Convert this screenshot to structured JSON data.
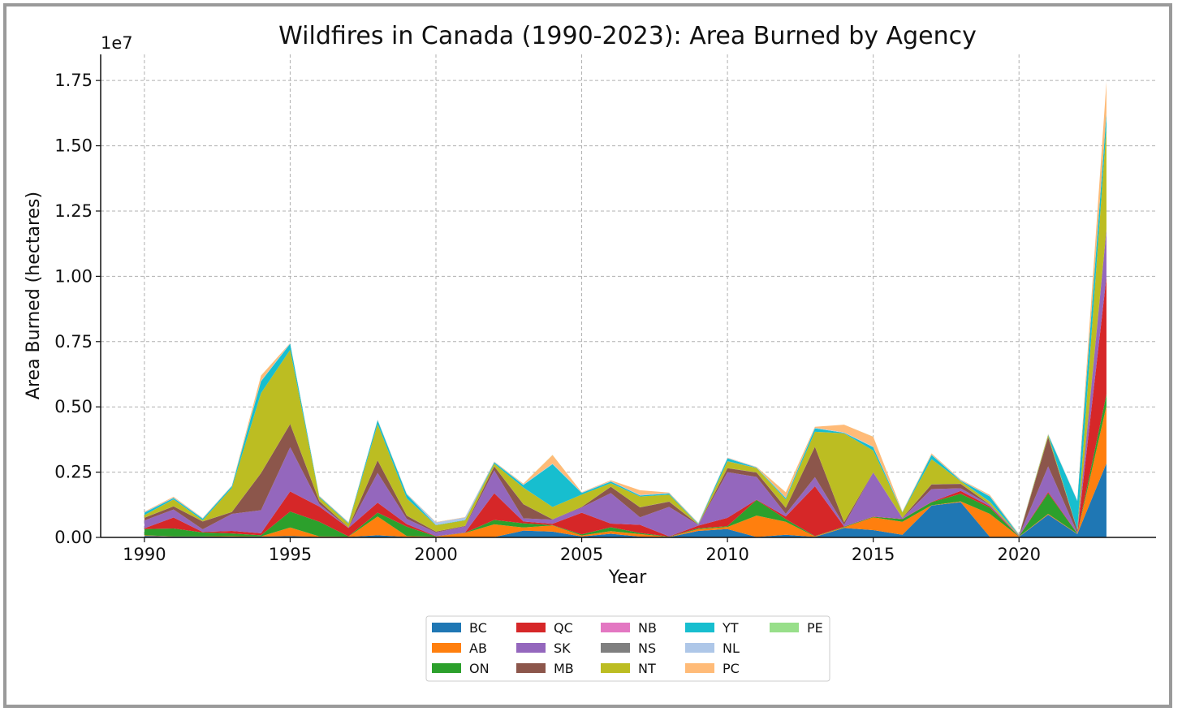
{
  "chart_data": {
    "type": "area",
    "stacked": true,
    "title": "Wildfires in Canada (1990-2023): Area Burned by Agency",
    "xlabel": "Year",
    "ylabel": "Area Burned (hectares)",
    "y_scale_label": "1e7",
    "xlim": [
      1988.5,
      2024.7
    ],
    "ylim": [
      0,
      18500000
    ],
    "x_ticks": [
      1990,
      1995,
      2000,
      2005,
      2010,
      2015,
      2020
    ],
    "x_tick_labels": [
      "1990",
      "1995",
      "2000",
      "2005",
      "2010",
      "2015",
      "2020"
    ],
    "y_ticks": [
      0,
      2500000,
      5000000,
      7500000,
      10000000,
      12500000,
      15000000,
      17500000
    ],
    "y_tick_labels": [
      "0.00",
      "0.25",
      "0.50",
      "0.75",
      "1.00",
      "1.25",
      "1.50",
      "1.75"
    ],
    "grid": true,
    "legend_position": "bottom-center",
    "x": [
      1990,
      1991,
      1992,
      1993,
      1994,
      1995,
      1996,
      1997,
      1998,
      1999,
      2000,
      2001,
      2002,
      2003,
      2004,
      2005,
      2006,
      2007,
      2008,
      2009,
      2010,
      2011,
      2012,
      2013,
      2014,
      2015,
      2016,
      2017,
      2018,
      2019,
      2020,
      2021,
      2022,
      2023
    ],
    "series": [
      {
        "name": "BC",
        "color": "#1f77b4",
        "values": [
          60000,
          30000,
          30000,
          30000,
          30000,
          50000,
          20000,
          20000,
          80000,
          20000,
          20000,
          10000,
          10000,
          260000,
          220000,
          35000,
          140000,
          30000,
          10000,
          250000,
          320000,
          15000,
          100000,
          20000,
          360000,
          280000,
          100000,
          1220000,
          1350000,
          20000,
          20000,
          870000,
          130000,
          2840000
        ]
      },
      {
        "name": "AB",
        "color": "#ff7f0e",
        "values": [
          20000,
          10000,
          10000,
          20000,
          10000,
          330000,
          20000,
          10000,
          720000,
          30000,
          10000,
          160000,
          490000,
          120000,
          240000,
          40000,
          100000,
          100000,
          10000,
          70000,
          80000,
          820000,
          500000,
          20000,
          30000,
          490000,
          500000,
          10000,
          30000,
          880000,
          10000,
          30000,
          10000,
          2200000
        ]
      },
      {
        "name": "ON",
        "color": "#2ca02c",
        "values": [
          240000,
          300000,
          150000,
          100000,
          40000,
          610000,
          560000,
          10000,
          150000,
          360000,
          10000,
          10000,
          170000,
          160000,
          10000,
          40000,
          150000,
          40000,
          10000,
          30000,
          30000,
          600000,
          100000,
          10000,
          20000,
          20000,
          100000,
          120000,
          290000,
          240000,
          10000,
          790000,
          10000,
          440000
        ]
      },
      {
        "name": "QC",
        "color": "#d62728",
        "values": [
          30000,
          420000,
          20000,
          100000,
          80000,
          770000,
          580000,
          320000,
          380000,
          100000,
          10000,
          10000,
          1020000,
          70000,
          50000,
          830000,
          140000,
          310000,
          10000,
          100000,
          320000,
          10000,
          100000,
          1910000,
          10000,
          10000,
          10000,
          10000,
          110000,
          50000,
          10000,
          50000,
          10000,
          4500000
        ]
      },
      {
        "name": "SK",
        "color": "#9467bd",
        "values": [
          300000,
          310000,
          100000,
          650000,
          880000,
          1700000,
          100000,
          10000,
          1140000,
          200000,
          140000,
          230000,
          880000,
          120000,
          160000,
          200000,
          1170000,
          290000,
          1130000,
          30000,
          1750000,
          870000,
          100000,
          350000,
          60000,
          1680000,
          30000,
          490000,
          100000,
          60000,
          10000,
          980000,
          20000,
          1800000
        ]
      },
      {
        "name": "MB",
        "color": "#8c564b",
        "values": [
          100000,
          120000,
          300000,
          70000,
          1420000,
          880000,
          110000,
          10000,
          480000,
          120000,
          30000,
          20000,
          150000,
          540000,
          10000,
          20000,
          240000,
          380000,
          200000,
          10000,
          150000,
          170000,
          230000,
          1160000,
          100000,
          10000,
          10000,
          180000,
          170000,
          10000,
          10000,
          1120000,
          100000,
          20000
        ]
      },
      {
        "name": "NS",
        "color": "#7f7f7f",
        "values": [
          5000,
          5000,
          5000,
          5000,
          5000,
          5000,
          5000,
          5000,
          5000,
          5000,
          5000,
          5000,
          5000,
          5000,
          5000,
          5000,
          5000,
          5000,
          5000,
          5000,
          5000,
          5000,
          5000,
          5000,
          5000,
          5000,
          5000,
          5000,
          5000,
          5000,
          5000,
          5000,
          5000,
          5000
        ]
      },
      {
        "name": "NT",
        "color": "#bcbd22",
        "values": [
          100000,
          260000,
          40000,
          920000,
          3060000,
          2840000,
          140000,
          140000,
          1380000,
          660000,
          240000,
          210000,
          100000,
          630000,
          470000,
          470000,
          130000,
          410000,
          260000,
          10000,
          260000,
          170000,
          320000,
          570000,
          3400000,
          830000,
          200000,
          960000,
          100000,
          100000,
          10000,
          80000,
          10000,
          3900000
        ]
      },
      {
        "name": "NB",
        "color": "#e377c2",
        "values": [
          2000,
          2000,
          2000,
          2000,
          2000,
          2000,
          2000,
          2000,
          2000,
          2000,
          2000,
          2000,
          2000,
          2000,
          2000,
          2000,
          2000,
          2000,
          2000,
          2000,
          2000,
          2000,
          2000,
          2000,
          2000,
          2000,
          2000,
          2000,
          2000,
          2000,
          2000,
          2000,
          2000,
          2000
        ]
      },
      {
        "name": "YT",
        "color": "#17becf",
        "values": [
          90000,
          50000,
          60000,
          60000,
          450000,
          230000,
          30000,
          30000,
          150000,
          150000,
          10000,
          10000,
          50000,
          100000,
          1640000,
          60000,
          60000,
          40000,
          40000,
          20000,
          110000,
          10000,
          50000,
          130000,
          20000,
          130000,
          10000,
          160000,
          20000,
          200000,
          10000,
          10000,
          1100000,
          530000
        ]
      },
      {
        "name": "NL",
        "color": "#aec7e8",
        "values": [
          20000,
          20000,
          20000,
          20000,
          20000,
          20000,
          20000,
          20000,
          20000,
          20000,
          100000,
          100000,
          20000,
          20000,
          20000,
          20000,
          20000,
          20000,
          20000,
          20000,
          20000,
          20000,
          20000,
          20000,
          20000,
          20000,
          20000,
          20000,
          20000,
          20000,
          20000,
          20000,
          20000,
          20000
        ]
      },
      {
        "name": "PC",
        "color": "#ffbb78",
        "values": [
          20000,
          30000,
          10000,
          10000,
          200000,
          10000,
          10000,
          10000,
          10000,
          10000,
          10000,
          10000,
          10000,
          30000,
          330000,
          10000,
          30000,
          180000,
          20000,
          10000,
          10000,
          10000,
          200000,
          40000,
          290000,
          380000,
          10000,
          40000,
          20000,
          40000,
          10000,
          10000,
          10000,
          1200000
        ]
      },
      {
        "name": "PE",
        "color": "#98df8a",
        "values": [
          1000,
          1000,
          1000,
          1000,
          1000,
          1000,
          1000,
          1000,
          1000,
          1000,
          1000,
          1000,
          1000,
          1000,
          1000,
          1000,
          1000,
          1000,
          1000,
          1000,
          1000,
          1000,
          1000,
          1000,
          1000,
          1000,
          1000,
          1000,
          1000,
          1000,
          1000,
          1000,
          1000,
          1000
        ]
      }
    ],
    "legend_order": [
      "BC",
      "AB",
      "ON",
      "QC",
      "SK",
      "MB",
      "NB",
      "NS",
      "NT",
      "YT",
      "NL",
      "PC",
      "PE"
    ]
  }
}
